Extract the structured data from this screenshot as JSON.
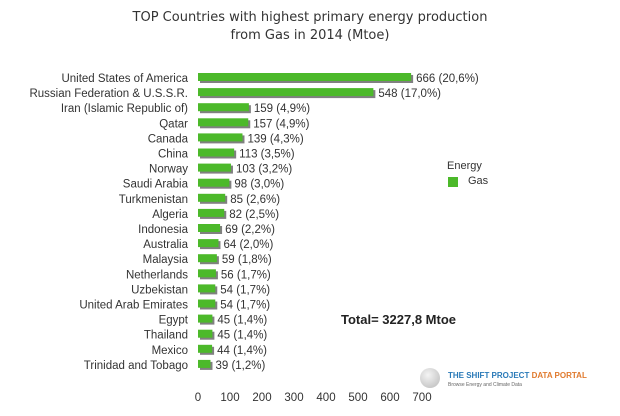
{
  "chart_data": {
    "type": "bar",
    "orientation": "horizontal",
    "title": "TOP Countries with highest primary energy production",
    "subtitle": "from Gas in 2014  (Mtoe)",
    "categories": [
      "United States of America",
      "Russian Federation & U.S.S.R.",
      "Iran (Islamic Republic of)",
      "Qatar",
      "Canada",
      "China",
      "Norway",
      "Saudi Arabia",
      "Turkmenistan",
      "Algeria",
      "Indonesia",
      "Australia",
      "Malaysia",
      "Netherlands",
      "Uzbekistan",
      "United Arab Emirates",
      "Egypt",
      "Thailand",
      "Mexico",
      "Trinidad and Tobago"
    ],
    "series": [
      {
        "name": "Gas",
        "values": [
          666,
          548,
          159,
          157,
          139,
          113,
          103,
          98,
          85,
          82,
          69,
          64,
          59,
          56,
          54,
          54,
          45,
          45,
          44,
          39
        ]
      }
    ],
    "data_labels": [
      "666 (20,6%)",
      "548 (17,0%)",
      "159 (4,9%)",
      "157 (4,9%)",
      "139 (4,3%)",
      "113 (3,5%)",
      "103 (3,2%)",
      "98 (3,0%)",
      "85 (2,6%)",
      "82 (2,5%)",
      "69 (2,2%)",
      "64 (2,0%)",
      "59 (1,8%)",
      "56 (1,7%)",
      "54 (1,7%)",
      "54 (1,7%)",
      "45 (1,4%)",
      "45 (1,4%)",
      "44 (1,4%)",
      "39 (1,2%)"
    ],
    "xlim": [
      0,
      700
    ],
    "xticks": [
      "0",
      "100",
      "200",
      "300",
      "400",
      "500",
      "600",
      "700"
    ],
    "grid": false,
    "legend": {
      "title": "Energy",
      "position": "right"
    },
    "colors": {
      "bar": "#4cb92a",
      "shadow": "#808080"
    },
    "annotation": "Total= 3227,8 Mtoe"
  },
  "logo": {
    "part1": "THE SHIFT PROJECT",
    "part2": "DATA PORTAL",
    "tagline": "Browse Energy and Climate Data"
  }
}
